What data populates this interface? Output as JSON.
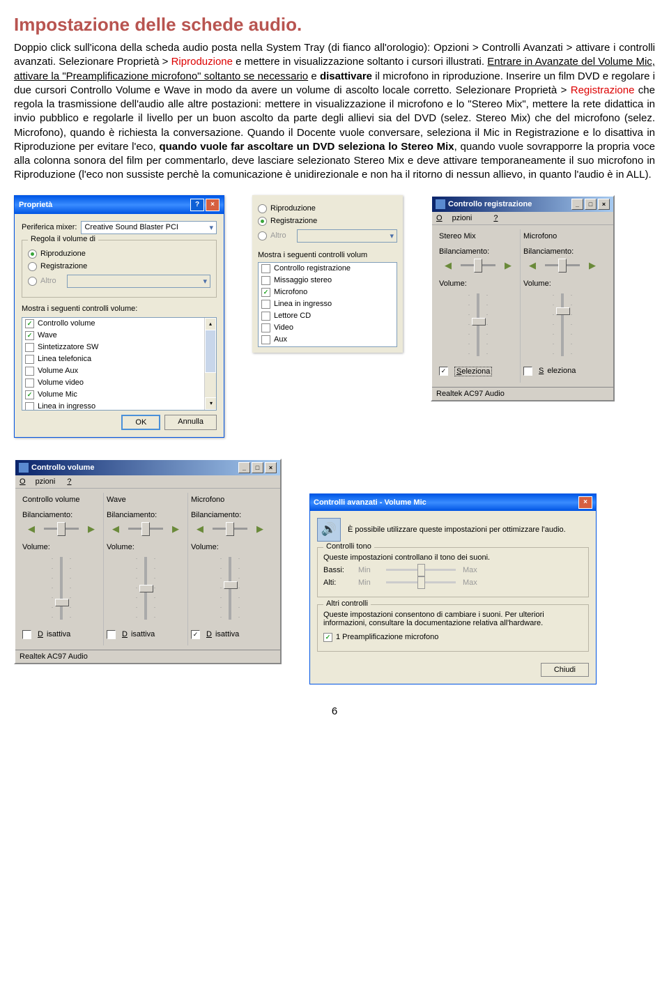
{
  "title": "Impostazione delle schede audio.",
  "bodyText": "Doppio click sull'icona della scheda audio posta nella System Tray (di fianco all'orologio): Opzioni > Controlli Avanzati > attivare i controlli avanzati. Selezionare Proprietà > <span class='red'>Riproduzione</span> e mettere in visualizzazione soltanto i cursori illustrati. <span class='ul'>Entrare in Avanzate del Volume Mic, attivare la \"Preamplificazione microfono\" soltanto se necessario</span> e <b>disattivare</b> il microfono in riproduzione. Inserire un film DVD e regolare i due cursori Controllo Volume e Wave in modo da avere un volume di ascolto locale corretto. Selezionare Proprietà > <span class='red'>Registrazione</span> che regola la trasmissione dell'audio alle altre postazioni: mettere in visualizzazione il microfono e lo \"Stereo Mix\", mettere la rete didattica in invio pubblico e regolarle il livello per un buon ascolto da parte degli allievi sia del DVD (selez. Stereo Mix) che del microfono (selez. Microfono), quando è richiesta la conversazione. Quando il Docente vuole conversare, seleziona il Mic in Registrazione e lo disattiva in Riproduzione per evitare l'eco, <b>quando vuole far ascoltare un DVD seleziona lo Stereo Mix</b>, quando vuole sovrapporre la propria voce alla colonna sonora del film per commentarlo, deve lasciare selezionato Stereo Mix e deve attivare temporaneamente il suo microfono in Riproduzione (l'eco non sussiste perchè la comunicazione è unidirezionale e non ha il ritorno di nessun allievo, in quanto l'audio è in ALL).",
  "propLeft": {
    "title": "Proprietà",
    "mixerLabel": "Periferica mixer:",
    "mixerValue": "Creative Sound Blaster PCI",
    "groupTitle": "Regola il volume di",
    "radios": [
      {
        "label": "Riproduzione",
        "checked": true
      },
      {
        "label": "Registrazione",
        "checked": false
      },
      {
        "label": "Altro",
        "checked": false,
        "disabled": true
      }
    ],
    "listLabel": "Mostra i seguenti controlli volume:",
    "items": [
      {
        "label": "Controllo volume",
        "checked": true
      },
      {
        "label": "Wave",
        "checked": true
      },
      {
        "label": "Sintetizzatore SW",
        "checked": false
      },
      {
        "label": "Linea telefonica",
        "checked": false
      },
      {
        "label": "Volume Aux",
        "checked": false
      },
      {
        "label": "Volume video",
        "checked": false
      },
      {
        "label": "Volume Mic",
        "checked": true
      },
      {
        "label": "Linea in ingresso",
        "checked": false
      }
    ],
    "ok": "OK",
    "cancel": "Annulla"
  },
  "propRight": {
    "radios": [
      {
        "label": "Riproduzione",
        "checked": false
      },
      {
        "label": "Registrazione",
        "checked": true
      },
      {
        "label": "Altro",
        "checked": false,
        "disabled": true
      }
    ],
    "listLabel": "Mostra i seguenti controlli volum",
    "items": [
      {
        "label": "Controllo registrazione",
        "checked": false
      },
      {
        "label": "Missaggio stereo",
        "checked": false
      },
      {
        "label": "Microfono",
        "checked": true
      },
      {
        "label": "Linea in ingresso",
        "checked": false
      },
      {
        "label": "Lettore CD",
        "checked": false
      },
      {
        "label": "Video",
        "checked": false
      },
      {
        "label": "Aux",
        "checked": false
      }
    ]
  },
  "recCtrl": {
    "title": "Controllo registrazione",
    "menu": [
      "Opzioni",
      "?"
    ],
    "channels": [
      {
        "name": "Stereo Mix",
        "bal": "Bilanciamento:",
        "vol": "Volume:",
        "thumbTop": 35,
        "sel": true,
        "selLabel": "Seleziona",
        "box": true
      },
      {
        "name": "Microfono",
        "bal": "Bilanciamento:",
        "vol": "Volume:",
        "thumbTop": 20,
        "sel": false,
        "selLabel": "Seleziona",
        "box": false
      }
    ],
    "status": "Realtek AC97 Audio"
  },
  "volCtrl": {
    "title": "Controllo volume",
    "menu": [
      "Opzioni",
      "?"
    ],
    "channels": [
      {
        "name": "Controllo volume",
        "bal": "Bilanciamento:",
        "vol": "Volume:",
        "thumbTop": 60,
        "dis": "Disattiva",
        "disChk": false
      },
      {
        "name": "Wave",
        "bal": "Bilanciamento:",
        "vol": "Volume:",
        "thumbTop": 40,
        "dis": "Disattiva",
        "disChk": false
      },
      {
        "name": "Microfono",
        "bal": "Bilanciamento:",
        "vol": "Volume:",
        "thumbTop": 35,
        "dis": "Disattiva",
        "disChk": true
      }
    ],
    "status": "Realtek AC97 Audio"
  },
  "adv": {
    "title": "Controlli avanzati - Volume Mic",
    "intro": "È possibile utilizzare queste impostazioni per ottimizzare l'audio.",
    "g1": "Controlli tono",
    "g1text": "Queste impostazioni controllano il tono dei suoni.",
    "rows": [
      {
        "lbl": "Bassi:",
        "min": "Min",
        "max": "Max"
      },
      {
        "lbl": "Alti:",
        "min": "Min",
        "max": "Max"
      }
    ],
    "g2": "Altri controlli",
    "g2text": "Queste impostazioni consentono di cambiare i suoni. Per ulteriori informazioni, consultare la documentazione relativa all'hardware.",
    "chk": "1 Preamplificazione microfono",
    "close": "Chiudi"
  },
  "pageNum": "6"
}
